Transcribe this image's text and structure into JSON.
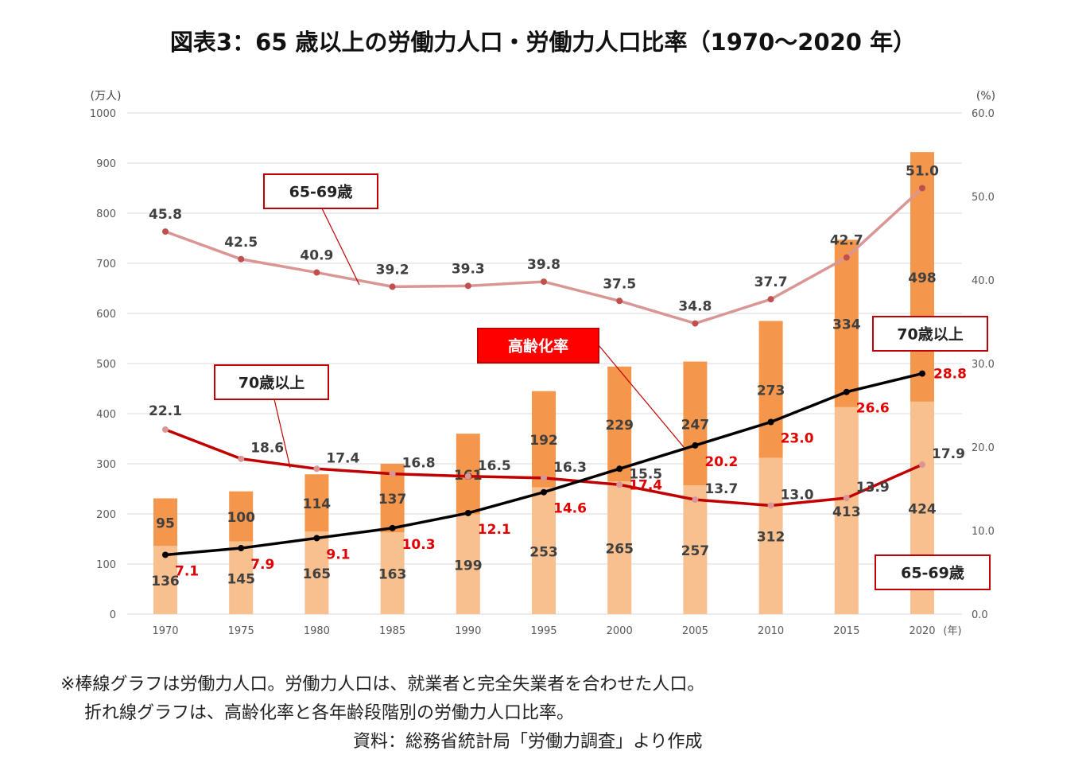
{
  "title": "図表3：65 歳以上の労働力人口・労働力人口比率（1970〜2020 年）",
  "notes": [
    "※棒線グラフは労働力人口。労働力人口は、就業者と完全失業者を合わせた人口。",
    "折れ線グラフは、高齢化率と各年齢段階別の労働力人口比率。",
    "資料：総務省統計局「労働力調査」より作成"
  ],
  "chart_data": {
    "type": "bar+line",
    "categories": [
      "1970",
      "1975",
      "1980",
      "1985",
      "1990",
      "1995",
      "2000",
      "2005",
      "2010",
      "2015",
      "2020"
    ],
    "xunit": "(年)",
    "yleft": {
      "unit": "(万人)",
      "range": [
        0,
        1000
      ],
      "ticks": [
        "0",
        "100",
        "200",
        "300",
        "400",
        "500",
        "600",
        "700",
        "800",
        "900",
        "1000"
      ]
    },
    "yright": {
      "unit": "(%)",
      "range": [
        0,
        60
      ],
      "ticks": [
        "0.0",
        "10.0",
        "20.0",
        "30.0",
        "40.0",
        "50.0",
        "60.0"
      ]
    },
    "grid": true,
    "bars_stacked": [
      {
        "name": "65-69歳",
        "axis": "left",
        "color": "#f9c08f",
        "values": [
          136,
          145,
          165,
          163,
          199,
          253,
          265,
          257,
          312,
          413,
          424
        ]
      },
      {
        "name": "70歳以上",
        "axis": "left",
        "color": "#f4964b",
        "values": [
          95,
          100,
          114,
          137,
          161,
          192,
          229,
          247,
          273,
          334,
          498
        ]
      }
    ],
    "lines": [
      {
        "name": "65-69歳",
        "axis": "right",
        "color": "#d99694",
        "values": [
          45.8,
          42.5,
          40.9,
          39.2,
          39.3,
          39.8,
          37.5,
          34.8,
          37.7,
          42.7,
          51.0
        ]
      },
      {
        "name": "70歳以上",
        "axis": "right",
        "color": "#c00000",
        "values": [
          22.1,
          18.6,
          17.4,
          16.8,
          16.5,
          16.3,
          15.5,
          13.7,
          13.0,
          13.9,
          17.9
        ]
      },
      {
        "name": "高齢化率",
        "axis": "right",
        "color": "#000000",
        "values": [
          7.1,
          7.9,
          9.1,
          10.3,
          12.1,
          14.6,
          17.4,
          20.2,
          23.0,
          26.6,
          28.8
        ]
      }
    ],
    "annotations": {
      "line_6569": "65-69歳",
      "line_70": "70歳以上",
      "aging": "高齢化率",
      "bar_70": "70歳以上",
      "bar_6569": "65-69歳"
    }
  }
}
